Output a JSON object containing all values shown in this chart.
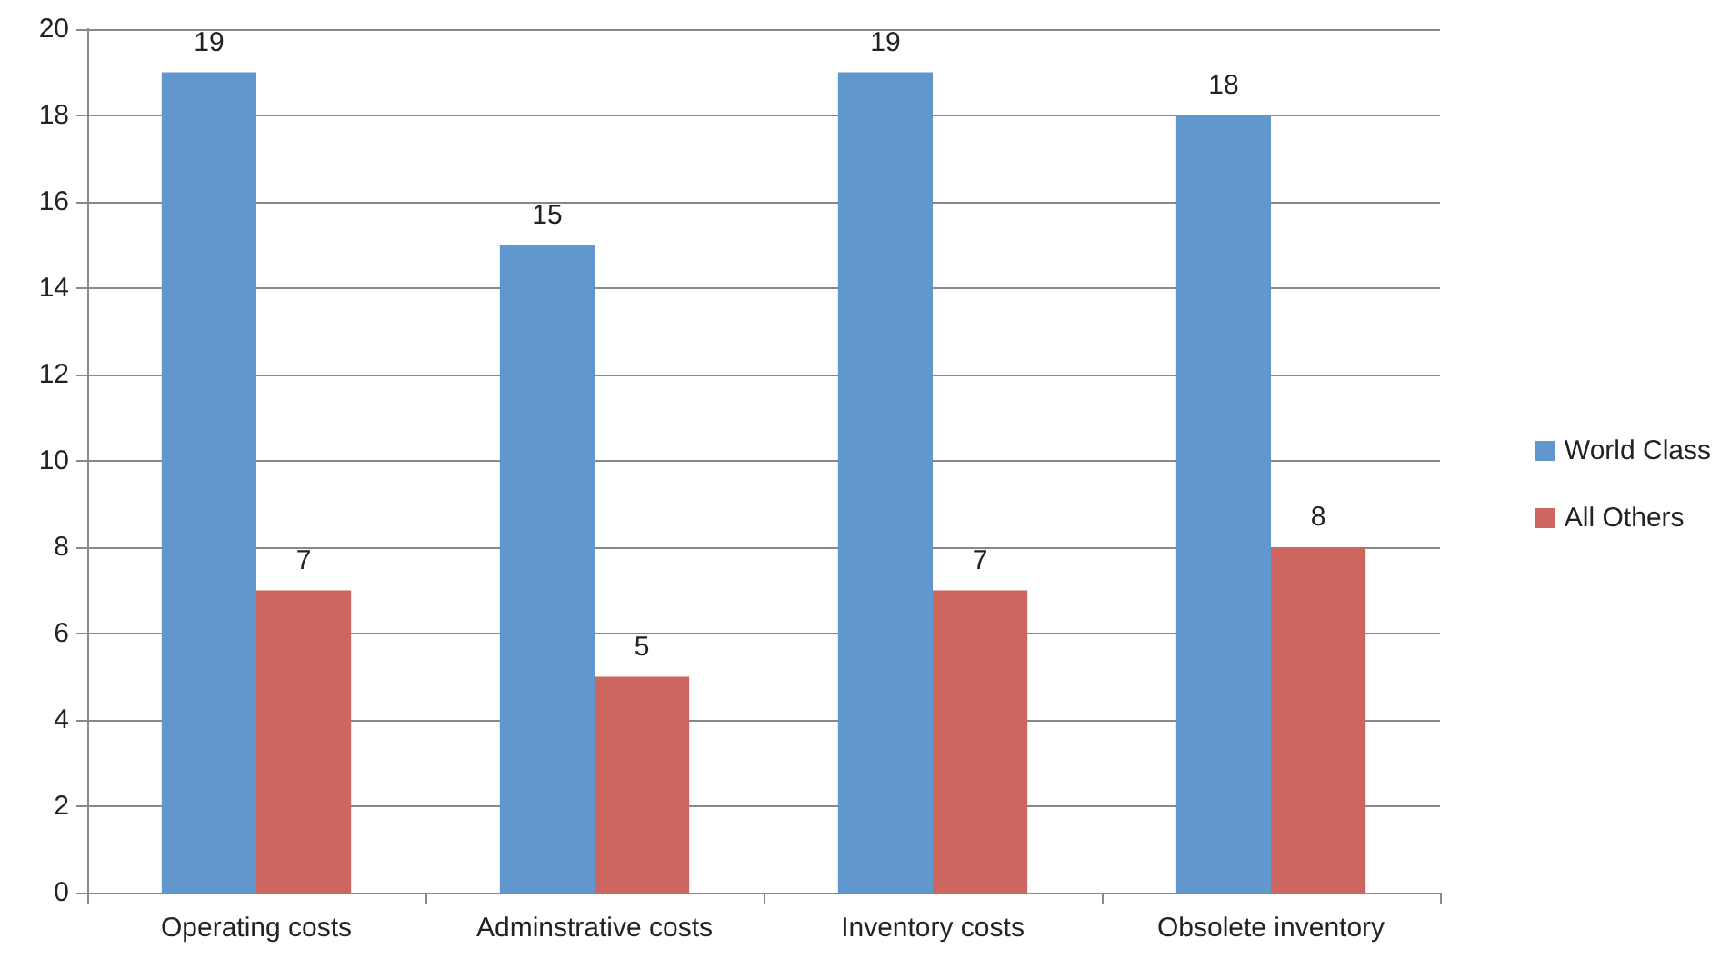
{
  "chart_data": {
    "type": "bar",
    "categories": [
      "Operating costs",
      "Adminstrative costs",
      "Inventory costs",
      "Obsolete inventory"
    ],
    "series": [
      {
        "name": "World Class",
        "color": "#6097cd",
        "values": [
          19,
          15,
          19,
          18
        ]
      },
      {
        "name": "All Others",
        "color": "#cd6660",
        "values": [
          7,
          5,
          7,
          8
        ]
      }
    ],
    "ylim": [
      0,
      20
    ],
    "yticks": [
      0,
      2,
      4,
      6,
      8,
      10,
      12,
      14,
      16,
      18,
      20
    ],
    "grid": "y",
    "legend": "right",
    "data_labels": true
  }
}
